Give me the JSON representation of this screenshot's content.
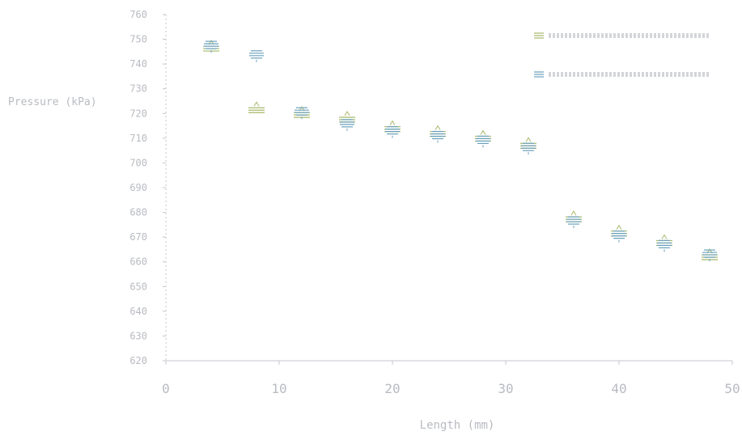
{
  "chart_data": {
    "type": "scatter",
    "title": "",
    "xlabel": "Length (mm)",
    "ylabel": "Pressure (kPa)",
    "x_ticks": [
      "0",
      "10",
      "20",
      "30",
      "40",
      "50"
    ],
    "xlim": [
      0,
      50
    ],
    "y_ticks": [
      "760",
      "750",
      "740",
      "730",
      "720",
      "710",
      "700",
      "690",
      "680",
      "670",
      "660",
      "650",
      "640",
      "630",
      "620"
    ],
    "ylim": [
      616,
      762
    ],
    "grid": false,
    "legend_position": "top-right",
    "series": [
      {
        "name": "",
        "color": "#a8b86a",
        "x": [
          4,
          8,
          12,
          16,
          20,
          24,
          28,
          32,
          36,
          40,
          44,
          48
        ],
        "y": [
          748,
          722,
          720,
          718,
          714,
          712,
          710,
          707,
          676,
          670,
          666,
          660
        ]
      },
      {
        "name": "",
        "color": "#6aa0bc",
        "x": [
          4,
          8,
          12,
          16,
          20,
          24,
          28,
          32,
          36,
          40,
          44,
          48
        ],
        "y": [
          749,
          745,
          721,
          716,
          713,
          711,
          709,
          706,
          675,
          669,
          665,
          661
        ]
      }
    ]
  }
}
